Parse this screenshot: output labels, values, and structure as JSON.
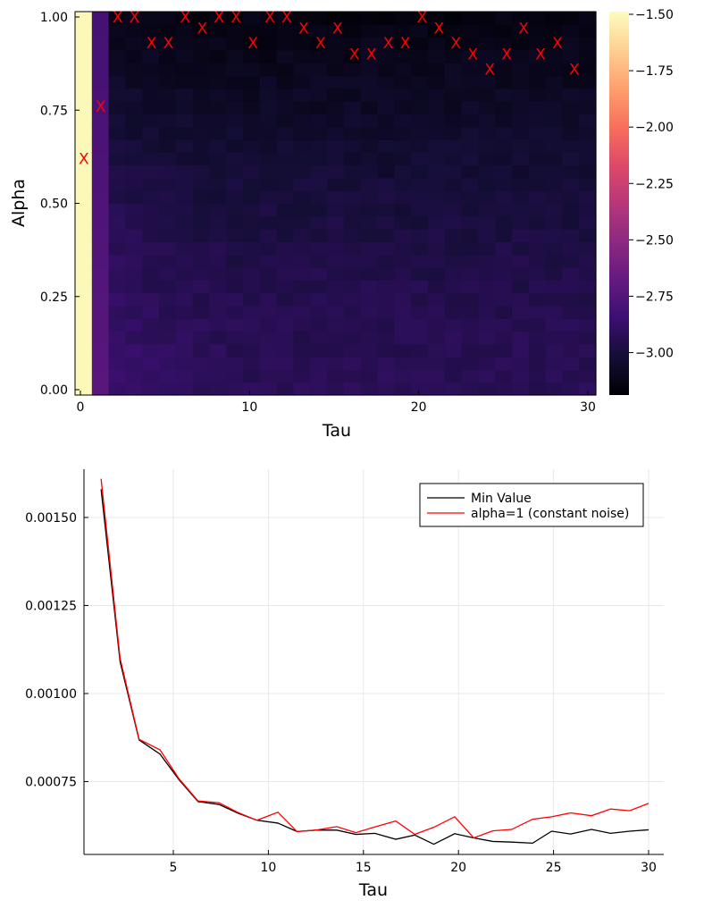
{
  "chart_data": [
    {
      "type": "heatmap",
      "xlabel": "Tau",
      "ylabel": "Alpha",
      "x_range": [
        0,
        30
      ],
      "y_range": [
        0,
        1
      ],
      "x_ticks": [
        0,
        10,
        20,
        30
      ],
      "x_tick_labels": [
        "0",
        "10",
        "20",
        "30"
      ],
      "y_ticks": [
        0,
        0.25,
        0.5,
        0.75,
        1.0
      ],
      "y_tick_labels": [
        "0.00",
        "0.25",
        "0.50",
        "0.75",
        "1.00"
      ],
      "colorbar": {
        "colormap": "magma",
        "range": [
          -3.2,
          -1.5
        ],
        "ticks": [
          -1.5,
          -1.75,
          -2.0,
          -2.25,
          -2.5,
          -2.75,
          -3.0
        ],
        "tick_labels": [
          "−1.50",
          "−1.75",
          "−2.00",
          "−2.25",
          "−2.50",
          "−2.75",
          "−3.00"
        ]
      },
      "minimum_markers": {
        "symbol": "X",
        "color": "#ff0000",
        "points": [
          [
            0,
            0.62
          ],
          [
            1,
            0.76
          ],
          [
            2,
            1.0
          ],
          [
            3,
            1.0
          ],
          [
            4,
            0.93
          ],
          [
            5,
            0.93
          ],
          [
            6,
            1.0
          ],
          [
            7,
            0.97
          ],
          [
            8,
            1.0
          ],
          [
            9,
            1.0
          ],
          [
            10,
            0.93
          ],
          [
            11,
            1.0
          ],
          [
            12,
            1.0
          ],
          [
            13,
            0.97
          ],
          [
            14,
            0.93
          ],
          [
            15,
            0.97
          ],
          [
            16,
            0.9
          ],
          [
            17,
            0.9
          ],
          [
            18,
            0.93
          ],
          [
            19,
            0.93
          ],
          [
            20,
            1.0
          ],
          [
            21,
            0.97
          ],
          [
            22,
            0.93
          ],
          [
            23,
            0.9
          ],
          [
            24,
            0.86
          ],
          [
            25,
            0.9
          ],
          [
            26,
            0.97
          ],
          [
            27,
            0.9
          ],
          [
            28,
            0.93
          ],
          [
            29,
            0.86
          ]
        ]
      }
    },
    {
      "type": "line",
      "xlabel": "Tau",
      "ylabel": "",
      "x_range": [
        0.3,
        30.8
      ],
      "y_range": [
        0.000543,
        0.001637
      ],
      "x_ticks": [
        5,
        10,
        15,
        20,
        25,
        30
      ],
      "x_tick_labels": [
        "5",
        "10",
        "15",
        "20",
        "25",
        "30"
      ],
      "y_ticks": [
        0.00075,
        0.001,
        0.00125,
        0.0015
      ],
      "y_tick_labels": [
        "0.00075",
        "0.00100",
        "0.00125",
        "0.00150"
      ],
      "grid": true,
      "legend_position": "top-right",
      "x": [
        1.2,
        2.2,
        3.2,
        4.3,
        5.3,
        6.3,
        7.4,
        8.4,
        9.4,
        10.5,
        11.5,
        12.5,
        13.6,
        14.6,
        15.6,
        16.7,
        17.7,
        18.7,
        19.8,
        20.8,
        21.8,
        22.8,
        23.9,
        24.9,
        25.9,
        27.0,
        28.0,
        29.0,
        30.0
      ],
      "series": [
        {
          "name": "Min Value",
          "color": "#000000",
          "values": [
            0.00158,
            0.00109,
            0.000868,
            0.000828,
            0.000755,
            0.000693,
            0.000685,
            0.00066,
            0.00064,
            0.000632,
            0.000608,
            0.000612,
            0.000612,
            0.0006,
            0.000603,
            0.000586,
            0.000598,
            0.000572,
            0.000602,
            0.00059,
            0.00058,
            0.000578,
            0.000575,
            0.000609,
            0.000601,
            0.000614,
            0.000603,
            0.000609,
            0.000613
          ]
        },
        {
          "name": "alpha=1 (constant noise)",
          "color": "#ff0000",
          "values": [
            0.00161,
            0.0011,
            0.00087,
            0.00084,
            0.000758,
            0.000695,
            0.00069,
            0.000662,
            0.00064,
            0.000663,
            0.000608,
            0.000612,
            0.000622,
            0.000605,
            0.000621,
            0.000638,
            0.0006,
            0.00062,
            0.00065,
            0.00059,
            0.00061,
            0.000614,
            0.000643,
            0.00065,
            0.000661,
            0.000653,
            0.000672,
            0.000667,
            0.000688
          ]
        }
      ]
    }
  ]
}
